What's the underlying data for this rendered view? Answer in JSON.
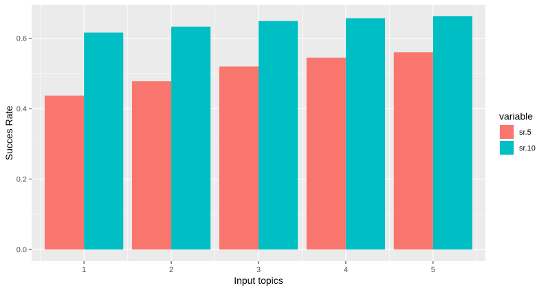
{
  "chart_data": {
    "type": "bar",
    "title": "",
    "xlabel": "Input topics",
    "ylabel": "Succes Rate",
    "categories": [
      "1",
      "2",
      "3",
      "4",
      "5"
    ],
    "series": [
      {
        "name": "sr.5",
        "color": "#F8766D",
        "values": [
          0.437,
          0.478,
          0.52,
          0.545,
          0.56
        ]
      },
      {
        "name": "sr.10",
        "color": "#00BFC4",
        "values": [
          0.616,
          0.633,
          0.649,
          0.657,
          0.663
        ]
      }
    ],
    "ylim": [
      -0.033,
      0.695
    ],
    "yticks": [
      0.0,
      0.2,
      0.4,
      0.6
    ],
    "ytick_labels": [
      "0.0",
      "0.2",
      "0.4",
      "0.6"
    ],
    "legend": {
      "title": "variable",
      "position": "right"
    },
    "grid": true,
    "panel_background": "#EBEBEB",
    "gridline_color": "#FFFFFF"
  }
}
